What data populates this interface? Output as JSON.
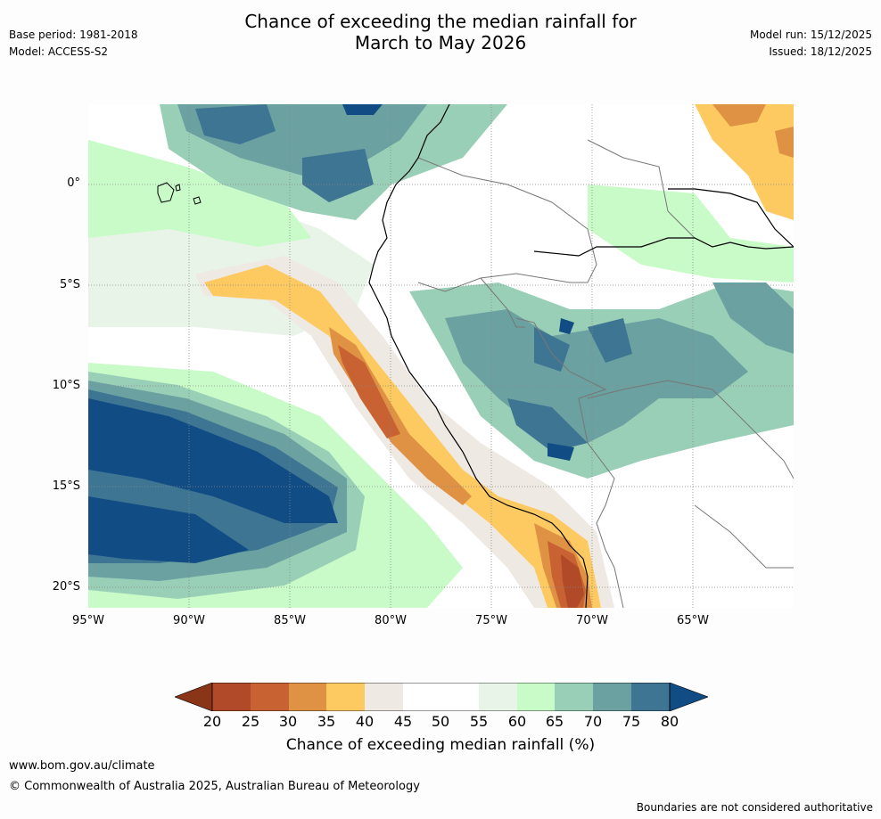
{
  "header": {
    "title_line1": "Chance of exceeding the median rainfall for",
    "title_line2": "March to May 2026",
    "base_period": "Base period: 1981-2018",
    "model": "Model: ACCESS-S2",
    "model_run": "Model run: 15/12/2025",
    "issued": "Issued: 18/12/2025"
  },
  "map": {
    "lat_labels": [
      "0°",
      "5°S",
      "10°S",
      "15°S",
      "20°S"
    ],
    "lon_labels": [
      "95°W",
      "90°W",
      "85°W",
      "80°W",
      "75°W",
      "70°W",
      "65°W"
    ]
  },
  "colorbar": {
    "label": "Chance of exceeding median rainfall (%)",
    "ticks": [
      "20",
      "25",
      "30",
      "35",
      "40",
      "45",
      "50",
      "55",
      "60",
      "65",
      "70",
      "75",
      "80"
    ],
    "colors": {
      "lt20": "#8a3418",
      "20_25": "#b04a28",
      "25_30": "#c96232",
      "30_35": "#df9144",
      "35_40": "#fdca62",
      "40_45": "#efe9e4",
      "45_50": "#ffffff",
      "50_55": "#ffffff",
      "55_60": "#e9f4e8",
      "60_65": "#c8fbc8",
      "65_70": "#9acfb7",
      "70_75": "#6ba1a1",
      "75_80": "#3e7593",
      "gt80": "#124c85"
    }
  },
  "footer": {
    "website": "www.bom.gov.au/climate",
    "copyright": "© Commonwealth of Australia 2025, Australian Bureau of Meteorology",
    "disclaimer": "Boundaries are not considered authoritative"
  }
}
